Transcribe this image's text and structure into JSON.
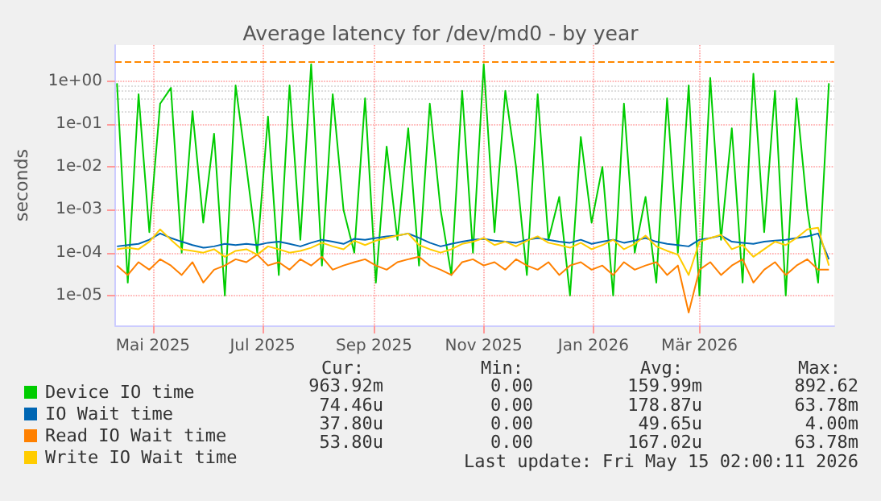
{
  "chart_data": {
    "type": "line",
    "title": "Average latency for /dev/md0 - by year",
    "ylabel": "seconds",
    "log": true,
    "grid": true,
    "legend": "bottom left",
    "xlim": [
      "2025-04-10",
      "2026-05-15"
    ],
    "xticks": [
      {
        "value": "2025-05-01",
        "label": "Mai 2025"
      },
      {
        "value": "2025-07-01",
        "label": "Jul 2025"
      },
      {
        "value": "2025-09-01",
        "label": "Sep 2025"
      },
      {
        "value": "2025-11-01",
        "label": "Nov 2025"
      },
      {
        "value": "2026-01-01",
        "label": "Jan 2026"
      },
      {
        "value": "2026-03-01",
        "label": "Mär 2026"
      }
    ],
    "ylim": [
      2e-06,
      7
    ],
    "yticks": [
      {
        "value": 1e-05,
        "label": "1e-05"
      },
      {
        "value": 0.0001,
        "label": "1e-04"
      },
      {
        "value": 0.001,
        "label": "1e-03"
      },
      {
        "value": 0.01,
        "label": "1e-02"
      },
      {
        "value": 0.1,
        "label": "1e-01"
      },
      {
        "value": 1,
        "label": "1e+00"
      }
    ],
    "x": [
      "2025-04-11",
      "2025-04-17",
      "2025-04-23",
      "2025-04-29",
      "2025-05-05",
      "2025-05-11",
      "2025-05-17",
      "2025-05-23",
      "2025-05-29",
      "2025-06-04",
      "2025-06-10",
      "2025-06-16",
      "2025-06-22",
      "2025-06-28",
      "2025-07-04",
      "2025-07-10",
      "2025-07-16",
      "2025-07-22",
      "2025-07-28",
      "2025-08-03",
      "2025-08-09",
      "2025-08-15",
      "2025-08-21",
      "2025-08-27",
      "2025-09-02",
      "2025-09-08",
      "2025-09-14",
      "2025-09-20",
      "2025-09-26",
      "2025-10-02",
      "2025-10-08",
      "2025-10-14",
      "2025-10-20",
      "2025-10-26",
      "2025-11-01",
      "2025-11-07",
      "2025-11-13",
      "2025-11-19",
      "2025-11-25",
      "2025-12-01",
      "2025-12-07",
      "2025-12-13",
      "2025-12-19",
      "2025-12-25",
      "2025-12-31",
      "2026-01-06",
      "2026-01-12",
      "2026-01-18",
      "2026-01-24",
      "2026-01-30",
      "2026-02-05",
      "2026-02-11",
      "2026-02-17",
      "2026-02-23",
      "2026-03-01",
      "2026-03-07",
      "2026-03-13",
      "2026-03-19",
      "2026-03-25",
      "2026-03-31",
      "2026-04-06",
      "2026-04-12",
      "2026-04-18",
      "2026-04-24",
      "2026-04-30",
      "2026-05-06",
      "2026-05-12"
    ],
    "series": [
      {
        "name": "Device IO time",
        "color": "#00cc00",
        "values": [
          0.9,
          2e-05,
          0.5,
          0.0003,
          0.3,
          0.7,
          0.0001,
          0.2,
          0.0005,
          0.06,
          1e-05,
          0.8,
          0.01,
          0.0001,
          0.15,
          3e-05,
          0.8,
          0.0002,
          2.5,
          5e-05,
          0.5,
          0.001,
          0.0001,
          0.4,
          2e-05,
          0.03,
          0.0002,
          0.08,
          5e-05,
          0.3,
          0.001,
          3e-05,
          0.6,
          0.0001,
          2.5,
          0.0003,
          0.6,
          0.01,
          3e-05,
          0.5,
          0.0002,
          0.002,
          1e-05,
          0.05,
          0.0005,
          0.01,
          1e-05,
          0.3,
          0.0001,
          0.002,
          2e-05,
          0.4,
          0.0001,
          0.8,
          1e-05,
          1.2,
          0.0002,
          0.08,
          2e-05,
          1.5,
          0.0003,
          0.6,
          1e-05,
          0.4,
          0.001,
          2e-05,
          0.9
        ]
      },
      {
        "name": "IO Wait time",
        "color": "#0066b3",
        "values": [
          0.00014,
          0.00015,
          0.00016,
          0.0002,
          0.00028,
          0.00022,
          0.00018,
          0.00015,
          0.00013,
          0.00014,
          0.00016,
          0.00015,
          0.00016,
          0.00015,
          0.00017,
          0.00018,
          0.00016,
          0.00014,
          0.00017,
          0.0002,
          0.00018,
          0.00016,
          0.00021,
          0.0002,
          0.00022,
          0.00024,
          0.00025,
          0.00028,
          0.00022,
          0.00017,
          0.00014,
          0.00016,
          0.00018,
          0.0002,
          0.00021,
          0.00019,
          0.00018,
          0.00017,
          0.0002,
          0.00022,
          0.0002,
          0.00018,
          0.00017,
          0.0002,
          0.00016,
          0.00018,
          0.0002,
          0.00017,
          0.00019,
          0.00022,
          0.00018,
          0.00016,
          0.00015,
          0.00014,
          0.0002,
          0.00022,
          0.00025,
          0.00018,
          0.00017,
          0.00016,
          0.00018,
          0.00019,
          0.0002,
          0.00022,
          0.00024,
          0.00028,
          7e-05
        ]
      },
      {
        "name": "Read IO Wait time",
        "color": "#ff8000",
        "values": [
          5e-05,
          3e-05,
          6e-05,
          4e-05,
          7e-05,
          5e-05,
          3e-05,
          6e-05,
          2e-05,
          4e-05,
          5e-05,
          7e-05,
          6e-05,
          9e-05,
          5e-05,
          6e-05,
          4e-05,
          7e-05,
          5e-05,
          8e-05,
          4e-05,
          5e-05,
          6e-05,
          7e-05,
          5e-05,
          4e-05,
          6e-05,
          7e-05,
          8e-05,
          5e-05,
          4e-05,
          3e-05,
          6e-05,
          7e-05,
          5e-05,
          6e-05,
          4e-05,
          7e-05,
          5e-05,
          4e-05,
          6e-05,
          3e-05,
          5e-05,
          6e-05,
          4e-05,
          5e-05,
          3e-05,
          6e-05,
          4e-05,
          5e-05,
          6e-05,
          3e-05,
          5e-05,
          4e-06,
          4e-05,
          6e-05,
          3e-05,
          5e-05,
          7e-05,
          2e-05,
          4e-05,
          6e-05,
          3e-05,
          5e-05,
          7e-05,
          4e-05,
          4e-05
        ]
      },
      {
        "name": "Write IO Wait time",
        "color": "#ffcc00",
        "values": [
          0.00012,
          0.00013,
          0.00012,
          0.00018,
          0.00035,
          0.0002,
          0.00012,
          0.00011,
          0.0001,
          0.00012,
          8e-05,
          0.00011,
          0.00012,
          9e-05,
          0.00014,
          0.00012,
          0.0001,
          0.00011,
          0.00013,
          0.00017,
          0.00014,
          0.00012,
          0.00019,
          0.00015,
          0.00019,
          0.00022,
          0.00025,
          0.00028,
          0.00015,
          0.00012,
          0.0001,
          0.00012,
          0.00016,
          0.00018,
          0.00022,
          0.00015,
          0.00018,
          0.00014,
          0.00019,
          0.00024,
          0.00017,
          0.00015,
          0.00013,
          0.00017,
          0.00012,
          0.00015,
          0.0002,
          0.00012,
          0.00016,
          0.00025,
          0.00014,
          0.00011,
          9e-05,
          3e-05,
          0.00018,
          0.00022,
          0.00026,
          0.00012,
          0.00015,
          8e-05,
          0.00012,
          0.00018,
          0.00015,
          0.00022,
          0.00035,
          0.00038,
          5e-05
        ]
      }
    ],
    "ref_lines": [
      {
        "axis": "y",
        "value": 3,
        "color": "#ff8800",
        "line_style": "dashed"
      }
    ],
    "annotations": [
      "Cur:",
      "Min:",
      "Avg:",
      "Max:",
      "963.92m",
      "0.00",
      "159.99m",
      "892.62",
      "74.46u",
      "0.00",
      "178.87u",
      "63.78m",
      "37.80u",
      "0.00",
      "49.65u",
      "4.00m",
      "53.80u",
      "0.00",
      "167.02u",
      "63.78m",
      "Last update: Fri May 15 02:00:11 2026"
    ]
  }
}
